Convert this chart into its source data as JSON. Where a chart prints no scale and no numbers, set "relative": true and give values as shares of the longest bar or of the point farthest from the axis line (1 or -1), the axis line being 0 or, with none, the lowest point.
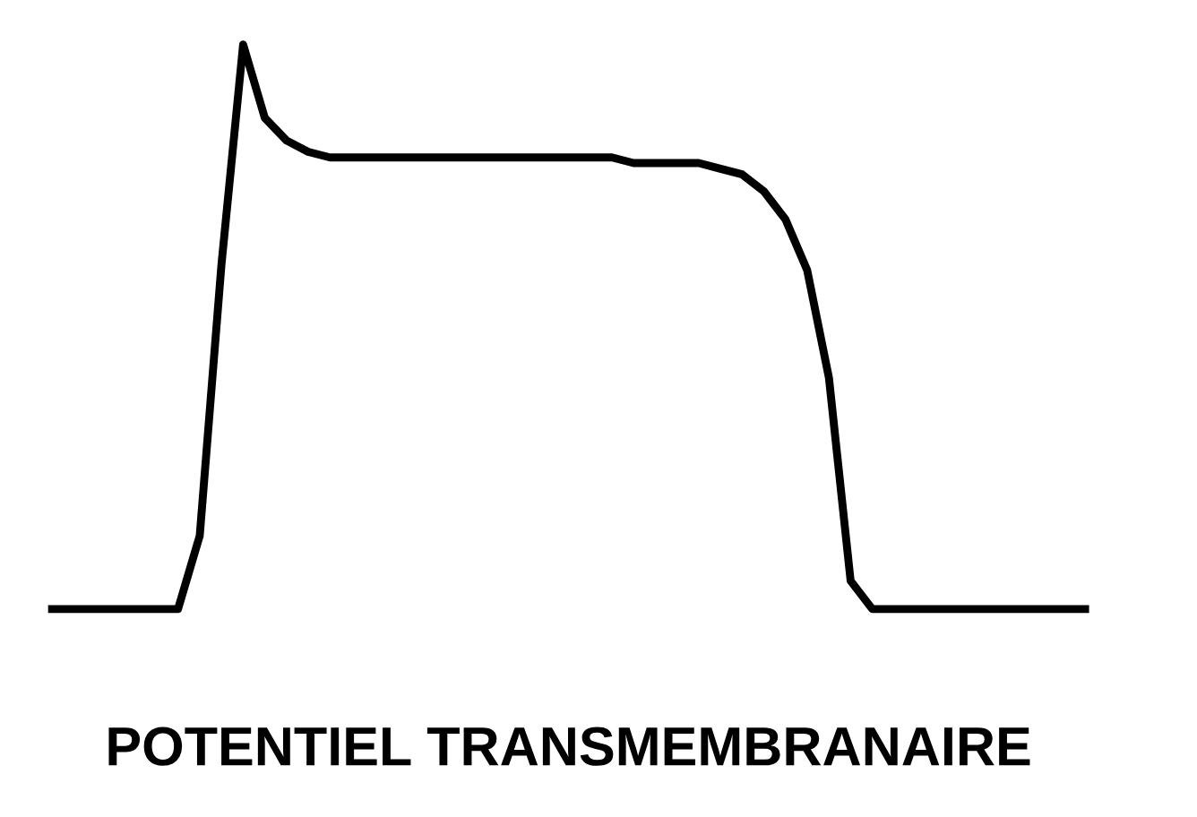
{
  "chart_data": {
    "type": "line",
    "relative": true,
    "xlabel": "POTENTIEL TRANSMEMBRANAIRE",
    "categories": [
      null,
      null,
      null,
      null,
      null,
      null,
      null,
      null,
      null,
      null,
      null,
      null,
      null,
      null,
      null,
      null,
      null,
      null,
      null,
      null,
      null,
      null,
      null,
      null,
      null,
      null,
      null,
      null,
      null,
      null,
      null,
      null,
      null,
      null,
      null,
      null,
      null,
      null,
      null,
      null,
      null,
      null,
      null,
      null,
      null,
      null,
      null,
      null,
      null
    ],
    "series": [
      {
        "color": "#000000",
        "values": [
          0,
          0,
          0,
          0,
          0,
          0,
          0,
          0.13,
          0.61,
          1,
          0.87,
          0.83,
          0.81,
          0.8,
          0.8,
          0.8,
          0.8,
          0.8,
          0.8,
          0.8,
          0.8,
          0.8,
          0.8,
          0.8,
          0.8,
          0.8,
          0.8,
          0.79,
          0.79,
          0.79,
          0.79,
          0.78,
          0.77,
          0.74,
          0.69,
          0.6,
          0.41,
          0.05,
          0,
          0,
          0,
          0,
          0,
          0,
          0,
          0,
          0,
          0,
          0
        ]
      }
    ],
    "grid": false,
    "legend": false,
    "marker": "none",
    "line_style": "solid"
  }
}
